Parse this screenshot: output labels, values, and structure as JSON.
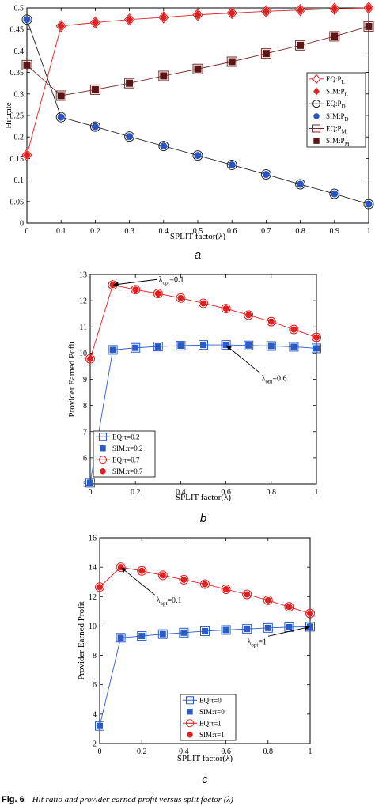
{
  "caption": {
    "bold": "Fig. 6",
    "text": "Hit ratio and provider earned profit versus split factor (λ)"
  },
  "chart_data": [
    {
      "type": "line",
      "panel_label": "a",
      "xlabel": "SPLIT factor(λ)",
      "ylabel": "Hit rate",
      "xlim": [
        0,
        1
      ],
      "ylim": [
        0,
        0.5
      ],
      "xticks": [
        0,
        0.1,
        0.2,
        0.3,
        0.4,
        0.5,
        0.6,
        0.7,
        0.8,
        0.9,
        1
      ],
      "xtick_labels": [
        "0",
        "0.1",
        "0.2",
        "0.3",
        "0.4",
        "0.5",
        "0.6",
        "0.7",
        "0.8",
        "0.9",
        "1"
      ],
      "yticks": [
        0,
        0.05,
        0.1,
        0.15,
        0.2,
        0.25,
        0.3,
        0.35,
        0.4,
        0.45,
        0.5
      ],
      "ytick_labels": [
        "0",
        "0.05",
        "0.1",
        "0.15",
        "0.2",
        "0.25",
        "0.3",
        "0.35",
        "0.4",
        "0.45",
        "0.5"
      ],
      "x": [
        0,
        0.1,
        0.2,
        0.3,
        0.4,
        0.5,
        0.6,
        0.7,
        0.8,
        0.9,
        1
      ],
      "legend_position": "right",
      "series": [
        {
          "name": "EQ:P_L",
          "sym": "EQ:P",
          "sub": "L",
          "color": "#e02020",
          "marker": "diamond-open",
          "line": true,
          "values": [
            0.158,
            0.458,
            0.466,
            0.473,
            0.478,
            0.484,
            0.488,
            0.492,
            0.495,
            0.498,
            0.5
          ]
        },
        {
          "name": "SIM:P_L",
          "sym": "SIM:P",
          "sub": "L",
          "color": "#e02020",
          "marker": "diamond-filled",
          "line": false,
          "values": [
            0.158,
            0.458,
            0.466,
            0.473,
            0.478,
            0.484,
            0.488,
            0.492,
            0.495,
            0.498,
            0.5
          ]
        },
        {
          "name": "EQ:P_D",
          "sym": "EQ:P",
          "sub": "D",
          "color": "#222222",
          "marker": "circle-open",
          "line": true,
          "values": [
            0.473,
            0.246,
            0.224,
            0.201,
            0.179,
            0.157,
            0.135,
            0.113,
            0.09,
            0.068,
            0.044
          ]
        },
        {
          "name": "SIM:P_D",
          "sym": "SIM:P",
          "sub": "D",
          "color": "#2a55c0",
          "marker": "circle-filled",
          "line": false,
          "values": [
            0.473,
            0.246,
            0.224,
            0.201,
            0.179,
            0.157,
            0.135,
            0.113,
            0.09,
            0.068,
            0.044
          ]
        },
        {
          "name": "EQ:P_M",
          "sym": "EQ:P",
          "sub": "M",
          "color": "#7a2a2a",
          "marker": "square-open",
          "line": true,
          "values": [
            0.367,
            0.296,
            0.31,
            0.325,
            0.342,
            0.358,
            0.375,
            0.394,
            0.413,
            0.434,
            0.457
          ]
        },
        {
          "name": "SIM:P_M",
          "sym": "SIM:P",
          "sub": "M",
          "color": "#5a1515",
          "marker": "square-filled",
          "line": false,
          "values": [
            0.367,
            0.296,
            0.31,
            0.325,
            0.342,
            0.358,
            0.375,
            0.394,
            0.413,
            0.434,
            0.457
          ]
        }
      ]
    },
    {
      "type": "line",
      "panel_label": "b",
      "xlabel": "SPLIT factor(λ)",
      "ylabel": "Provider Earned Pofit",
      "xlim": [
        0,
        1
      ],
      "ylim": [
        5,
        13
      ],
      "xticks": [
        0,
        0.2,
        0.4,
        0.6,
        0.8,
        1
      ],
      "xtick_labels": [
        "0",
        "0.2",
        "0.4",
        "0.6",
        "0.8",
        "1"
      ],
      "yticks": [
        5,
        6,
        7,
        8,
        9,
        10,
        11,
        12,
        13
      ],
      "ytick_labels": [
        "5",
        "6",
        "7",
        "8",
        "9",
        "10",
        "11",
        "12",
        "13"
      ],
      "x": [
        0,
        0.1,
        0.2,
        0.3,
        0.4,
        0.5,
        0.6,
        0.7,
        0.8,
        0.9,
        1
      ],
      "legend_position": "bottom-left",
      "annotations": [
        {
          "sym": "λ",
          "sub": "opt",
          "rest": "=0.1",
          "x": 0.1,
          "y": 12.6,
          "side": "right"
        },
        {
          "sym": "λ",
          "sub": "opt",
          "rest": "=0.6",
          "x": 0.6,
          "y": 10.3,
          "side": "below-right"
        }
      ],
      "series": [
        {
          "name": "EQ:τ=0.2",
          "sym": "EQ:τ=0.2",
          "sub": "",
          "color": "#2a5cc8",
          "marker": "square-open",
          "line": true,
          "values": [
            5.05,
            10.12,
            10.2,
            10.25,
            10.28,
            10.31,
            10.31,
            10.29,
            10.27,
            10.24,
            10.18
          ]
        },
        {
          "name": "SIM:τ=0.2",
          "sym": "SIM:τ=0.2",
          "sub": "",
          "color": "#2a5cc8",
          "marker": "square-filled",
          "line": false,
          "values": [
            5.05,
            10.12,
            10.2,
            10.25,
            10.28,
            10.31,
            10.31,
            10.29,
            10.27,
            10.24,
            10.18
          ]
        },
        {
          "name": "EQ:τ=0.7",
          "sym": "EQ:τ=0.7",
          "sub": "",
          "color": "#e02020",
          "marker": "circle-open",
          "line": true,
          "values": [
            9.78,
            12.6,
            12.42,
            12.27,
            12.1,
            11.9,
            11.7,
            11.45,
            11.2,
            10.9,
            10.6
          ]
        },
        {
          "name": "SIM:τ=0.7",
          "sym": "SIM:τ=0.7",
          "sub": "",
          "color": "#e02020",
          "marker": "circle-filled",
          "line": false,
          "values": [
            9.78,
            12.6,
            12.42,
            12.27,
            12.1,
            11.9,
            11.7,
            11.45,
            11.2,
            10.9,
            10.6
          ]
        }
      ]
    },
    {
      "type": "line",
      "panel_label": "c",
      "xlabel": "SPLIT factor(λ)",
      "ylabel": "Provider Earned Profit",
      "xlim": [
        0,
        1
      ],
      "ylim": [
        2,
        16
      ],
      "xticks": [
        0,
        0.2,
        0.4,
        0.6,
        0.8,
        1
      ],
      "xtick_labels": [
        "0",
        "0.2",
        "0.4",
        "0.6",
        "0.8",
        "1"
      ],
      "yticks": [
        2,
        4,
        6,
        8,
        10,
        12,
        14,
        16
      ],
      "ytick_labels": [
        "2",
        "4",
        "6",
        "8",
        "10",
        "12",
        "14",
        "16"
      ],
      "x": [
        0,
        0.1,
        0.2,
        0.3,
        0.4,
        0.5,
        0.6,
        0.7,
        0.8,
        0.9,
        1
      ],
      "legend_position": "bottom-center",
      "annotations": [
        {
          "sym": "λ",
          "sub": "opt",
          "rest": "=0.1",
          "x": 0.1,
          "y": 14.0,
          "side": "below-right"
        },
        {
          "sym": "λ",
          "sub": "opt",
          "rest": "=1",
          "x": 1.0,
          "y": 9.95,
          "side": "below-left"
        }
      ],
      "series": [
        {
          "name": "EQ:τ=0",
          "sym": "EQ:τ=0",
          "sub": "",
          "color": "#2a5cc8",
          "marker": "square-open",
          "line": true,
          "values": [
            3.2,
            9.2,
            9.32,
            9.45,
            9.55,
            9.65,
            9.73,
            9.8,
            9.87,
            9.92,
            9.95
          ]
        },
        {
          "name": "SIM:τ=0",
          "sym": "SIM:τ=0",
          "sub": "",
          "color": "#2a5cc8",
          "marker": "square-filled",
          "line": false,
          "values": [
            3.2,
            9.2,
            9.32,
            9.45,
            9.55,
            9.65,
            9.73,
            9.8,
            9.87,
            9.92,
            9.95
          ]
        },
        {
          "name": "EQ:τ=1",
          "sym": "EQ:τ=1",
          "sub": "",
          "color": "#e02020",
          "marker": "circle-open",
          "line": true,
          "values": [
            12.65,
            14.0,
            13.75,
            13.45,
            13.15,
            12.85,
            12.5,
            12.15,
            11.75,
            11.3,
            10.85
          ]
        },
        {
          "name": "SIM:τ=1",
          "sym": "SIM:τ=1",
          "sub": "",
          "color": "#e02020",
          "marker": "circle-filled",
          "line": false,
          "values": [
            12.65,
            14.0,
            13.75,
            13.45,
            13.15,
            12.85,
            12.5,
            12.15,
            11.75,
            11.3,
            10.85
          ]
        }
      ]
    }
  ]
}
